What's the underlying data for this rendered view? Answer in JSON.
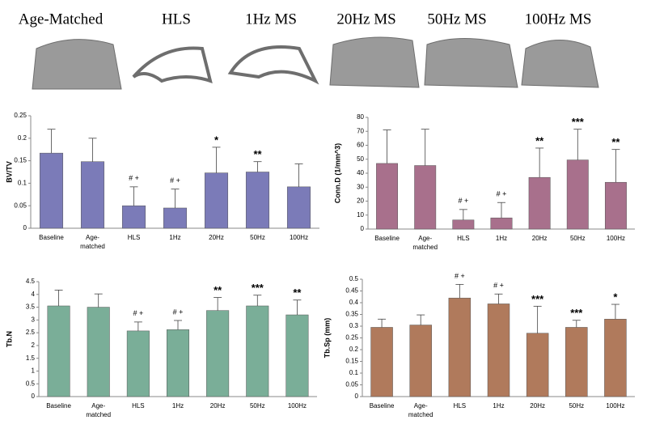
{
  "panel_labels": [
    "Age-Matched",
    "HLS",
    "1Hz MS",
    "20Hz MS",
    "50Hz MS",
    "100Hz MS"
  ],
  "chart_data": [
    {
      "type": "bar",
      "ylabel": "BV/TV",
      "color": "#7b7bb8",
      "categories": [
        "Baseline",
        "Age-matched",
        "HLS",
        "1Hz",
        "20Hz",
        "50Hz",
        "100Hz"
      ],
      "values": [
        0.167,
        0.148,
        0.05,
        0.045,
        0.123,
        0.125,
        0.092
      ],
      "errors": [
        0.053,
        0.052,
        0.042,
        0.042,
        0.057,
        0.023,
        0.051
      ],
      "annotations": [
        null,
        null,
        "# +",
        "# +",
        "*",
        "**",
        null
      ],
      "ylim": [
        0,
        0.25
      ],
      "yticks": [
        0,
        0.05,
        0.1,
        0.15,
        0.2,
        0.25
      ]
    },
    {
      "type": "bar",
      "ylabel": "Conn.D (1/mm^3)",
      "color": "#a8708c",
      "categories": [
        "Baseline",
        "Age-matched",
        "HLS",
        "1Hz",
        "20Hz",
        "50Hz",
        "100Hz"
      ],
      "values": [
        47,
        45.5,
        6.5,
        8,
        37,
        49.5,
        33.5
      ],
      "errors": [
        24,
        26,
        7.5,
        11,
        21,
        22,
        23.5
      ],
      "annotations": [
        null,
        null,
        "# +",
        "# +",
        "**",
        "***",
        "**"
      ],
      "ylim": [
        0,
        80
      ],
      "yticks": [
        0,
        10,
        20,
        30,
        40,
        50,
        60,
        70,
        80
      ]
    },
    {
      "type": "bar",
      "ylabel": "Tb.N",
      "color": "#7aae98",
      "categories": [
        "Baseline",
        "Age-matched",
        "HLS",
        "1Hz",
        "20Hz",
        "50Hz",
        "100Hz"
      ],
      "values": [
        3.55,
        3.5,
        2.57,
        2.62,
        3.37,
        3.55,
        3.2
      ],
      "errors": [
        0.62,
        0.52,
        0.35,
        0.36,
        0.51,
        0.42,
        0.58
      ],
      "annotations": [
        null,
        null,
        "# +",
        "# +",
        "**",
        "***",
        "**"
      ],
      "ylim": [
        0,
        4.5
      ],
      "yticks": [
        0,
        0.5,
        1,
        1.5,
        2,
        2.5,
        3,
        3.5,
        4,
        4.5
      ]
    },
    {
      "type": "bar",
      "ylabel": "Tb.Sp (mm)",
      "color": "#b07a5c",
      "categories": [
        "Baseline",
        "Age-matched",
        "HLS",
        "1Hz",
        "20Hz",
        "50Hz",
        "100Hz"
      ],
      "values": [
        0.295,
        0.305,
        0.42,
        0.395,
        0.27,
        0.295,
        0.33
      ],
      "errors": [
        0.035,
        0.043,
        0.058,
        0.042,
        0.115,
        0.03,
        0.063
      ],
      "annotations": [
        null,
        null,
        "# +",
        "# +",
        "***",
        "***",
        "*"
      ],
      "ylim": [
        0,
        0.5
      ],
      "yticks": [
        0,
        0.05,
        0.1,
        0.15,
        0.2,
        0.25,
        0.3,
        0.35,
        0.4,
        0.45,
        0.5
      ]
    }
  ]
}
